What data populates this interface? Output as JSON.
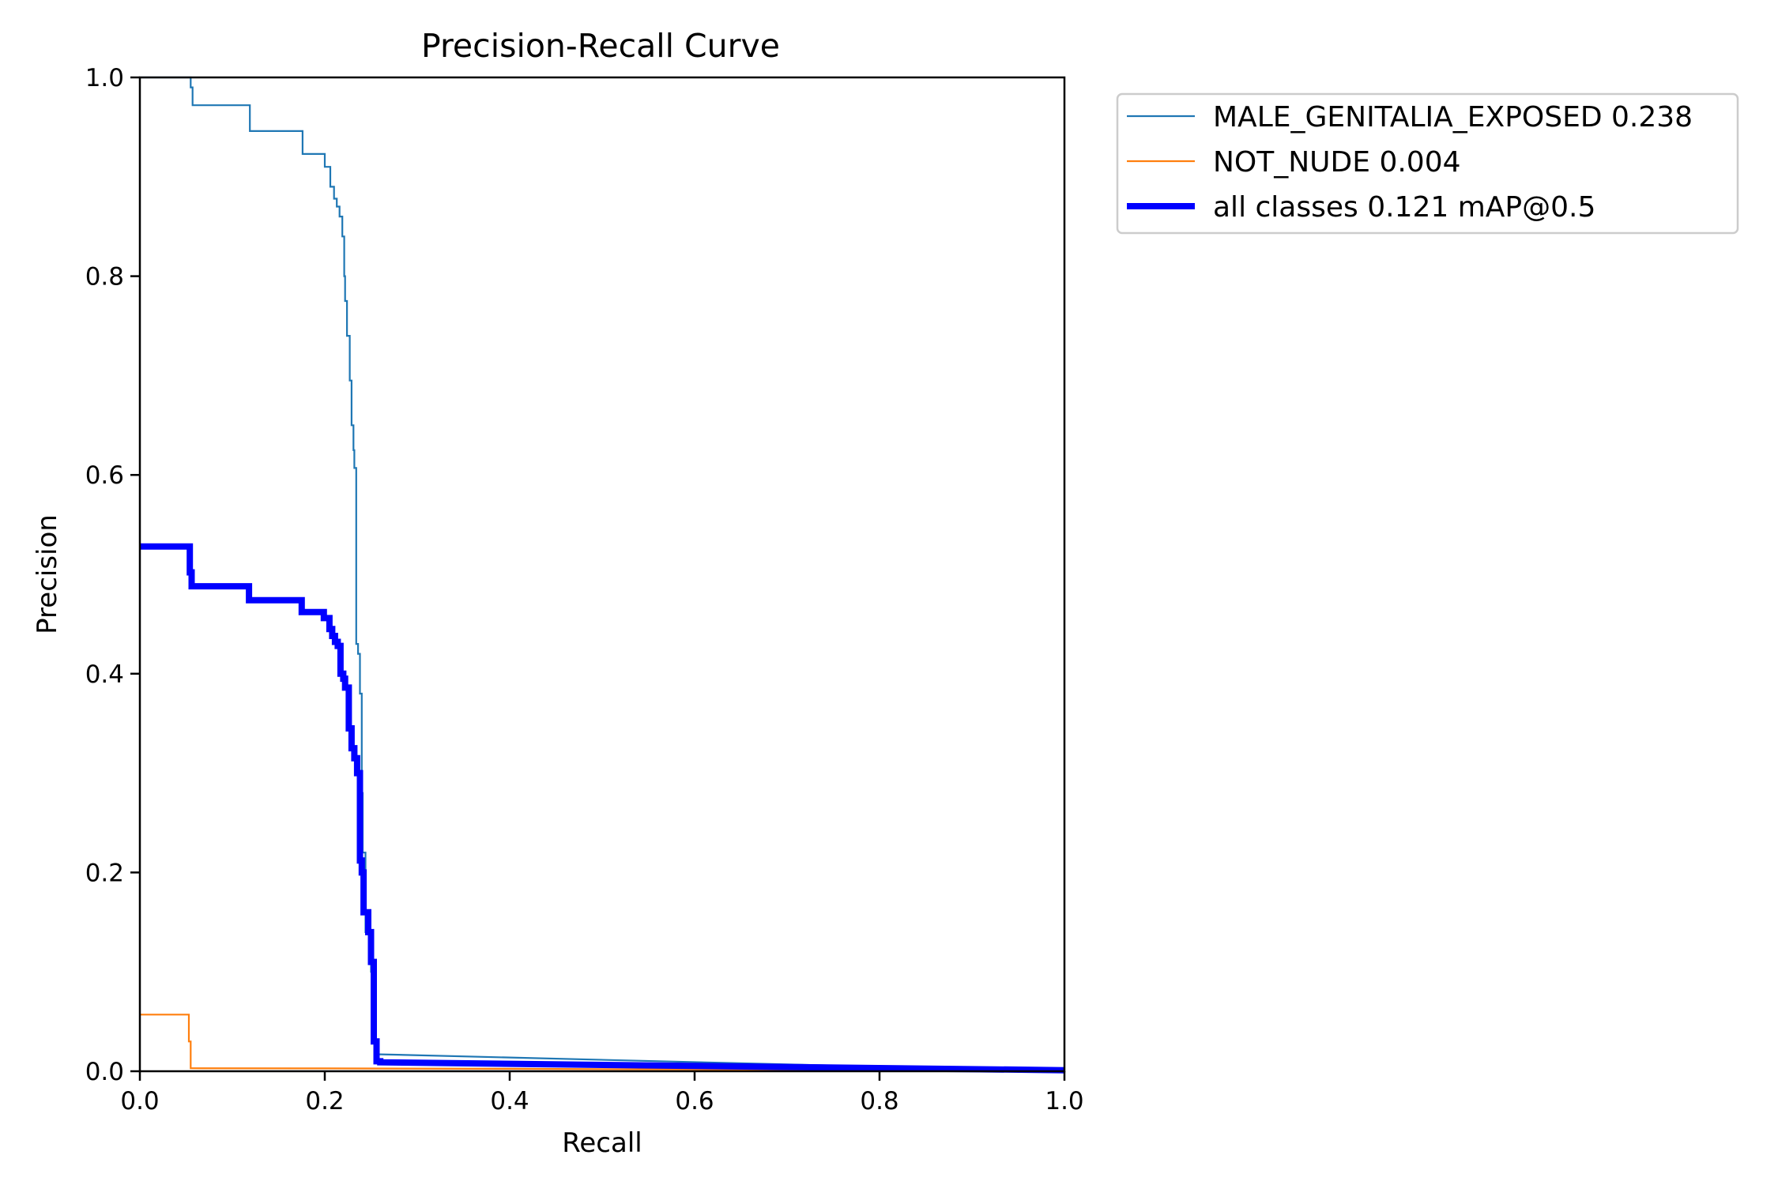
{
  "chart_data": {
    "type": "line",
    "title": "Precision-Recall Curve",
    "xlabel": "Recall",
    "ylabel": "Precision",
    "xlim": [
      0,
      1
    ],
    "ylim": [
      0,
      1
    ],
    "xticks": [
      "0.0",
      "0.2",
      "0.4",
      "0.6",
      "0.8",
      "1.0"
    ],
    "yticks": [
      "0.0",
      "0.2",
      "0.4",
      "0.6",
      "0.8",
      "1.0"
    ],
    "grid": false,
    "legend_position": "outside-top-right",
    "series": [
      {
        "name": "MALE_GENITALIA_EXPOSED 0.238",
        "color": "#1f77b4",
        "x": [
          0.0,
          0.055,
          0.055,
          0.057,
          0.057,
          0.119,
          0.119,
          0.176,
          0.176,
          0.2,
          0.2,
          0.206,
          0.206,
          0.21,
          0.21,
          0.213,
          0.213,
          0.216,
          0.216,
          0.219,
          0.219,
          0.221,
          0.221,
          0.222,
          0.222,
          0.224,
          0.224,
          0.227,
          0.227,
          0.229,
          0.229,
          0.231,
          0.231,
          0.232,
          0.232,
          0.234,
          0.234,
          0.236,
          0.236,
          0.238,
          0.238,
          0.24,
          0.24,
          0.241,
          0.241,
          0.244,
          0.244,
          0.248,
          0.248,
          0.25,
          0.25,
          0.252,
          0.252,
          0.254,
          0.254,
          0.256,
          0.256,
          0.258,
          0.258,
          0.26,
          1.0
        ],
        "y": [
          1.0,
          1.0,
          0.99,
          0.99,
          0.972,
          0.972,
          0.946,
          0.946,
          0.923,
          0.923,
          0.91,
          0.91,
          0.89,
          0.89,
          0.878,
          0.878,
          0.87,
          0.87,
          0.86,
          0.86,
          0.84,
          0.84,
          0.8,
          0.8,
          0.775,
          0.775,
          0.74,
          0.74,
          0.695,
          0.695,
          0.65,
          0.65,
          0.625,
          0.625,
          0.607,
          0.607,
          0.43,
          0.43,
          0.42,
          0.42,
          0.38,
          0.38,
          0.28,
          0.28,
          0.22,
          0.22,
          0.14,
          0.14,
          0.12,
          0.12,
          0.1,
          0.1,
          0.05,
          0.05,
          0.02,
          0.02,
          0.018,
          0.018,
          0.017,
          0.017,
          0.0
        ]
      },
      {
        "name": "NOT_NUDE 0.004",
        "color": "#ff7f0e",
        "x": [
          0.0,
          0.053,
          0.053,
          0.055,
          0.055,
          0.2,
          0.4,
          0.6,
          0.8,
          1.0
        ],
        "y": [
          0.057,
          0.057,
          0.03,
          0.03,
          0.003,
          0.0029,
          0.0025,
          0.0018,
          0.001,
          0.0
        ]
      },
      {
        "name": "all classes 0.121 mAP@0.5",
        "color": "#0000ff",
        "x": [
          0.0,
          0.054,
          0.054,
          0.056,
          0.056,
          0.118,
          0.118,
          0.175,
          0.175,
          0.199,
          0.199,
          0.205,
          0.205,
          0.208,
          0.208,
          0.211,
          0.211,
          0.214,
          0.214,
          0.217,
          0.217,
          0.22,
          0.22,
          0.222,
          0.222,
          0.226,
          0.226,
          0.229,
          0.229,
          0.232,
          0.232,
          0.235,
          0.235,
          0.238,
          0.238,
          0.24,
          0.24,
          0.242,
          0.242,
          0.247,
          0.247,
          0.25,
          0.25,
          0.253,
          0.253,
          0.256,
          0.256,
          0.258,
          0.258,
          0.26,
          0.26,
          1.0
        ],
        "y": [
          0.528,
          0.528,
          0.502,
          0.502,
          0.488,
          0.488,
          0.474,
          0.474,
          0.462,
          0.462,
          0.456,
          0.456,
          0.445,
          0.445,
          0.438,
          0.438,
          0.432,
          0.432,
          0.428,
          0.428,
          0.4,
          0.4,
          0.395,
          0.395,
          0.386,
          0.386,
          0.345,
          0.345,
          0.325,
          0.325,
          0.315,
          0.315,
          0.3,
          0.3,
          0.212,
          0.212,
          0.2,
          0.2,
          0.16,
          0.16,
          0.14,
          0.14,
          0.11,
          0.11,
          0.03,
          0.03,
          0.01,
          0.01,
          0.01,
          0.01,
          0.009,
          0.001
        ]
      }
    ]
  }
}
